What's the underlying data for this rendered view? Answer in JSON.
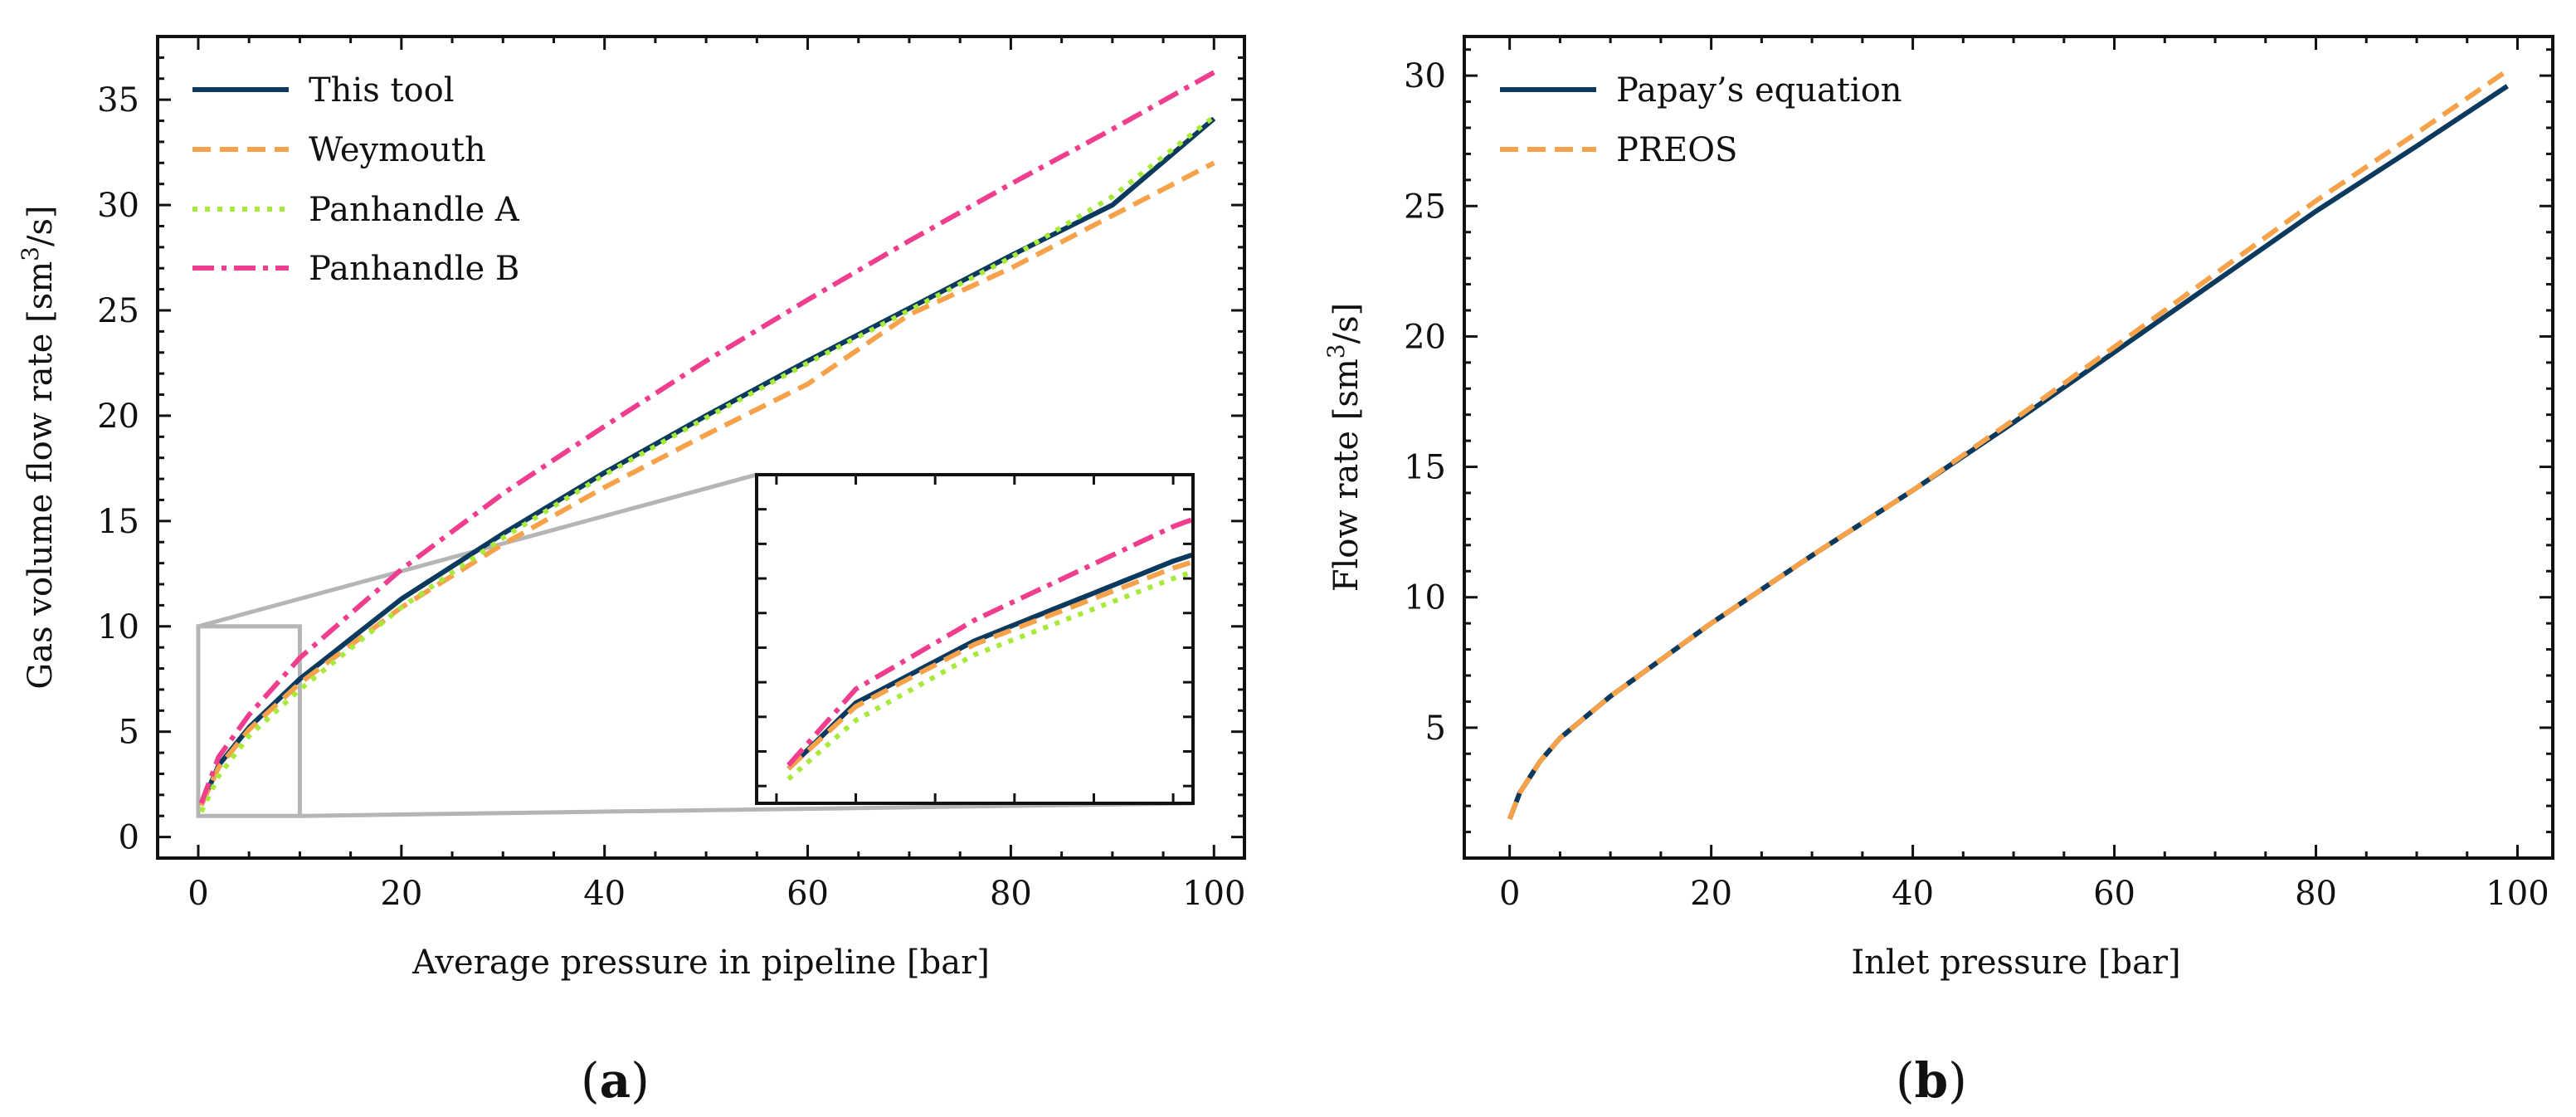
{
  "colors": {
    "this_tool": "#0b3a5e",
    "weymouth": "#f5a24b",
    "panhandle_a": "#a8ea3c",
    "panhandle_b": "#f03e8f",
    "zoom_box": "#b5b5b5"
  },
  "chart_data": [
    {
      "type": "line",
      "panel_label": "(a)",
      "xlabel": "Average pressure in pipeline [bar]",
      "ylabel": "Gas volume flow rate [sm³/s]",
      "xlim": [
        -4,
        103
      ],
      "ylim": [
        -1,
        38
      ],
      "xticks": [
        0,
        20,
        40,
        60,
        80,
        100
      ],
      "yticks": [
        0,
        5,
        10,
        15,
        20,
        25,
        30,
        35
      ],
      "legend_position": "top-left",
      "series": [
        {
          "name": "This tool",
          "style": "solid",
          "color_key": "this_tool",
          "x": [
            0.3,
            2,
            5,
            10,
            20,
            30,
            40,
            50,
            60,
            70,
            80,
            90,
            100
          ],
          "y": [
            1.5,
            3.4,
            5.2,
            7.5,
            11.3,
            14.4,
            17.3,
            20.0,
            22.6,
            25.1,
            27.6,
            30.0,
            34.1
          ]
        },
        {
          "name": "Weymouth",
          "style": "dashed",
          "color_key": "weymouth",
          "x": [
            0.3,
            2,
            5,
            10,
            20,
            30,
            40,
            50,
            60,
            70,
            80,
            90,
            100
          ],
          "y": [
            1.5,
            3.3,
            5.1,
            7.3,
            10.9,
            13.9,
            16.6,
            19.1,
            21.5,
            24.8,
            27.0,
            29.5,
            32.0
          ]
        },
        {
          "name": "Panhandle A",
          "style": "dotted",
          "color_key": "panhandle_a",
          "x": [
            0.3,
            2,
            5,
            10,
            20,
            30,
            40,
            50,
            60,
            70,
            80,
            90,
            100
          ],
          "y": [
            1.2,
            2.9,
            4.8,
            7.0,
            10.9,
            14.2,
            17.2,
            19.9,
            22.5,
            25.0,
            27.5,
            30.4,
            34.2
          ]
        },
        {
          "name": "Panhandle B",
          "style": "dashdot",
          "color_key": "panhandle_b",
          "x": [
            0.3,
            2,
            5,
            10,
            20,
            30,
            40,
            50,
            60,
            70,
            80,
            90,
            100
          ],
          "y": [
            1.6,
            3.8,
            5.8,
            8.5,
            12.7,
            16.3,
            19.5,
            22.6,
            25.5,
            28.3,
            31.0,
            33.6,
            36.3
          ]
        }
      ],
      "inset": {
        "zoom_region": {
          "x": [
            0,
            10
          ],
          "y": [
            1,
            10
          ]
        },
        "xlim": [
          -0.5,
          10.5
        ],
        "ylim": [
          0.5,
          10
        ],
        "ticks": "unlabeled"
      }
    },
    {
      "type": "line",
      "panel_label": "(b)",
      "xlabel": "Inlet pressure [bar]",
      "ylabel": "Flow rate [sm³/s]",
      "xlim": [
        -4.5,
        103.5
      ],
      "ylim": [
        0,
        31.5
      ],
      "xticks": [
        0,
        20,
        40,
        60,
        80,
        100
      ],
      "yticks": [
        5,
        10,
        15,
        20,
        25,
        30
      ],
      "legend_position": "top-left",
      "series": [
        {
          "name": "Papay’s equation",
          "style": "solid",
          "color_key": "this_tool",
          "x": [
            0,
            1,
            3,
            5,
            10,
            20,
            30,
            40,
            50,
            60,
            70,
            80,
            90,
            99
          ],
          "y": [
            1.5,
            2.5,
            3.7,
            4.6,
            6.2,
            9.0,
            11.6,
            14.1,
            16.7,
            19.4,
            22.1,
            24.8,
            27.3,
            29.6
          ]
        },
        {
          "name": "PREOS",
          "style": "dashed",
          "color_key": "weymouth",
          "x": [
            0,
            1,
            3,
            5,
            10,
            20,
            30,
            40,
            50,
            60,
            70,
            80,
            90,
            99
          ],
          "y": [
            1.5,
            2.5,
            3.7,
            4.6,
            6.2,
            9.0,
            11.6,
            14.1,
            16.8,
            19.6,
            22.4,
            25.2,
            27.8,
            30.2
          ]
        }
      ]
    }
  ]
}
